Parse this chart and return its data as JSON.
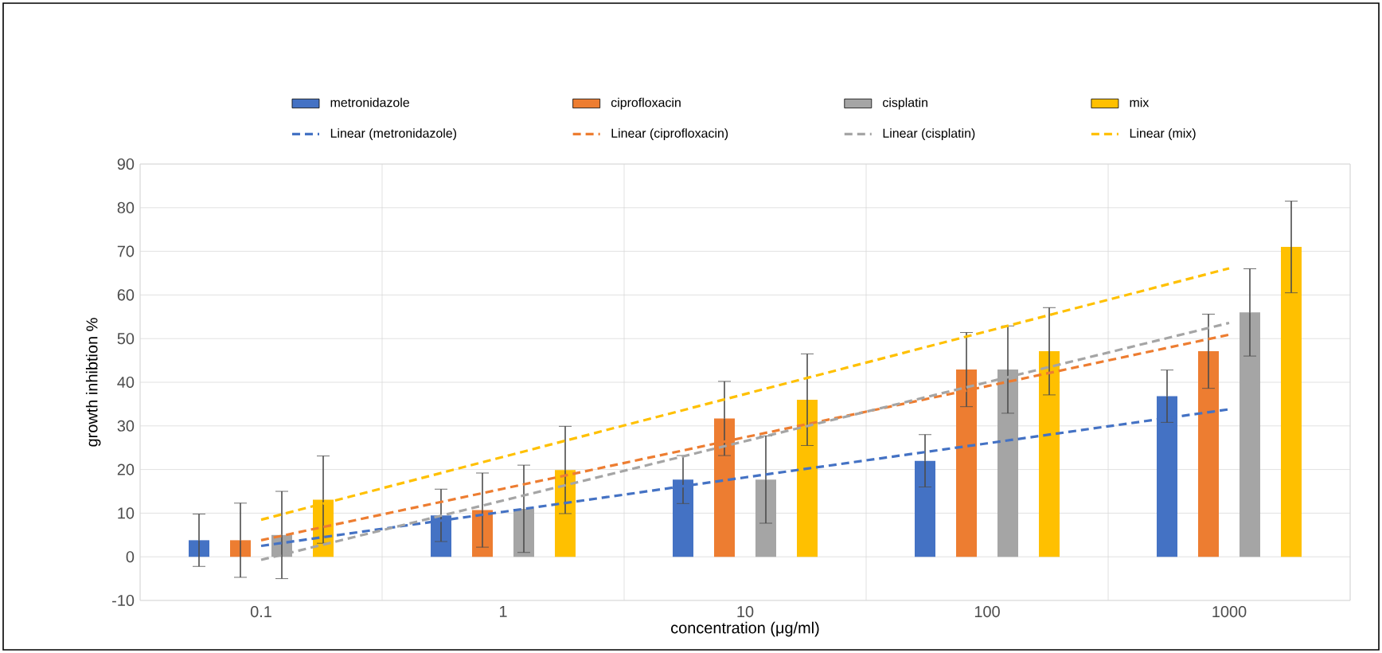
{
  "chart_data": {
    "type": "bar",
    "xlabel": "concentration (μg/ml)",
    "ylabel": "growth inhibtion %",
    "categories": [
      "0.1",
      "1",
      "10",
      "100",
      "1000"
    ],
    "ylim": [
      -10,
      90
    ],
    "yticks": [
      -10,
      0,
      10,
      20,
      30,
      40,
      50,
      60,
      70,
      80,
      90
    ],
    "grid": true,
    "legend": "top",
    "series": [
      {
        "name": "metronidazole",
        "color": "#4472c4",
        "values": [
          3.8,
          9.5,
          17.7,
          22,
          36.8
        ],
        "errors": [
          6,
          6,
          5.5,
          6,
          6
        ]
      },
      {
        "name": "ciprofloxacin",
        "color": "#ed7d31",
        "values": [
          3.8,
          10.7,
          31.7,
          42.9,
          47.1
        ],
        "errors": [
          8.5,
          8.5,
          8.5,
          8.5,
          8.5
        ]
      },
      {
        "name": "cisplatin",
        "color": "#a5a5a5",
        "values": [
          5,
          11,
          17.7,
          42.9,
          56
        ],
        "errors": [
          10,
          10,
          10,
          10,
          10
        ]
      },
      {
        "name": "mix",
        "color": "#ffc000",
        "values": [
          13.1,
          19.9,
          36,
          47.1,
          71
        ],
        "errors": [
          10,
          10,
          10.5,
          10,
          10.5
        ]
      },
      {
        "name": "Linear (metronidazole)",
        "type": "line",
        "line_style": "dashed",
        "color": "#4472c4",
        "values": [
          2.5,
          10.3,
          18.2,
          26.0,
          33.8
        ]
      },
      {
        "name": "Linear (ciprofloxacin)",
        "type": "line",
        "line_style": "dashed",
        "color": "#ed7d31",
        "values": [
          3.8,
          15.6,
          27.4,
          39.1,
          50.9
        ]
      },
      {
        "name": "Linear (cisplatin)",
        "type": "line",
        "line_style": "dashed",
        "color": "#a5a5a5",
        "values": [
          -0.7,
          12.9,
          26.5,
          40.0,
          53.6
        ]
      },
      {
        "name": "Linear (mix)",
        "type": "line",
        "line_style": "dashed",
        "color": "#ffc000",
        "values": [
          8.5,
          22.9,
          37.3,
          51.7,
          66.1
        ]
      }
    ]
  }
}
